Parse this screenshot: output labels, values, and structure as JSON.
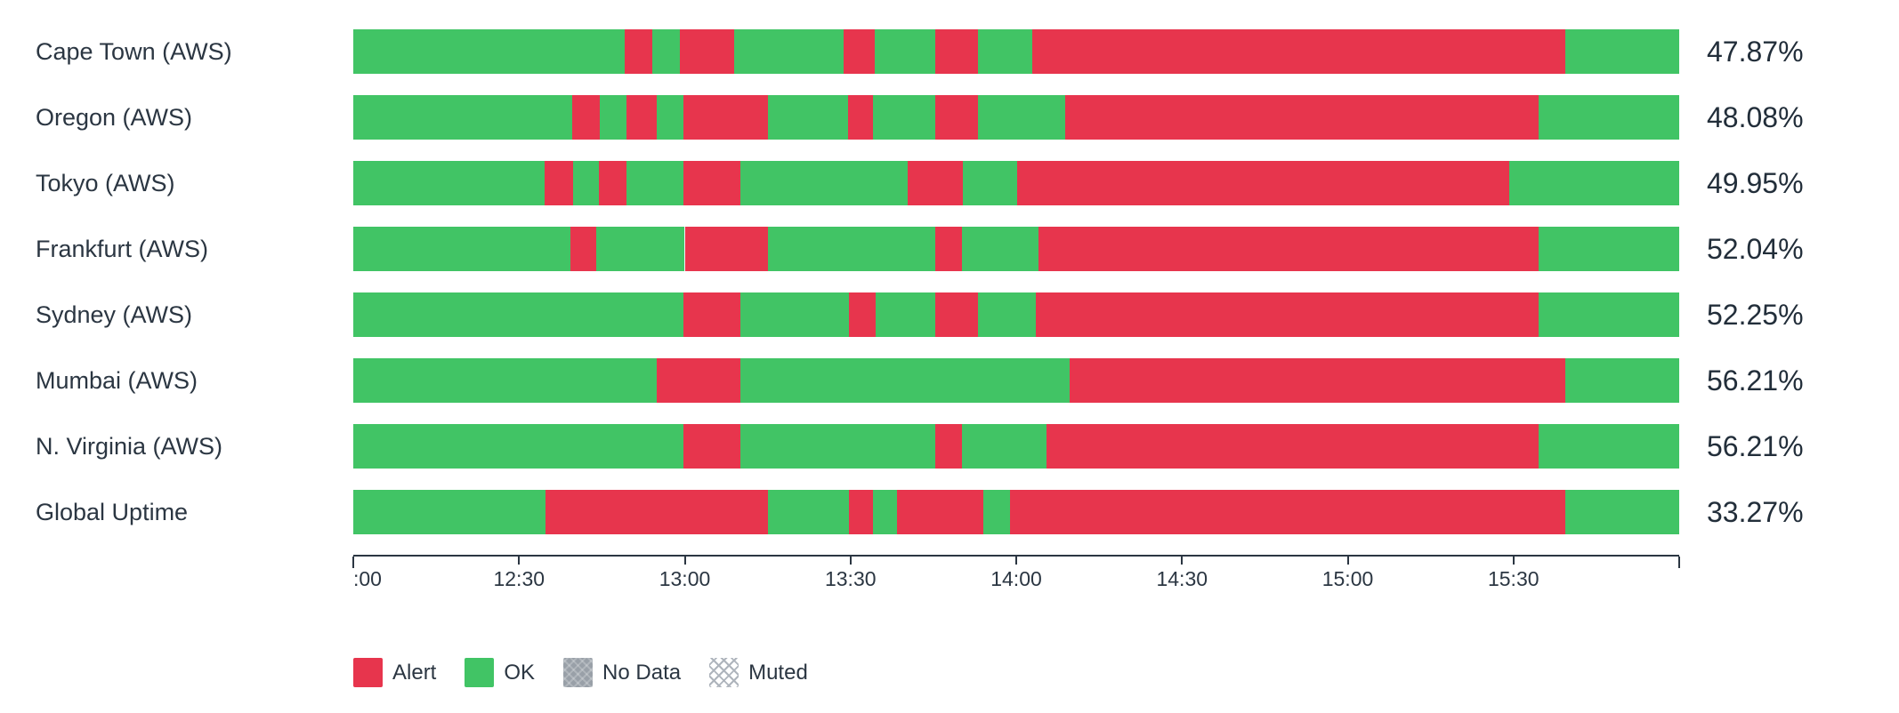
{
  "chart_data": {
    "type": "bar",
    "subtype": "uptime-status-timeline",
    "orientation": "horizontal",
    "grid": false,
    "legend_position": "bottom-left",
    "x_axis": {
      "start": "12:00",
      "end": "16:00",
      "tick_labels": [
        ":00",
        "12:30",
        "13:00",
        "13:30",
        "14:00",
        "14:30",
        "15:00",
        "15:30"
      ],
      "tick_positions": [
        0,
        0.125,
        0.25,
        0.375,
        0.5,
        0.625,
        0.75,
        0.875
      ]
    },
    "status_colors": {
      "ok": "#41c465",
      "alert": "#e7354d",
      "no_data": "#99a0a8"
    },
    "rows": [
      {
        "label": "Cape Town (AWS)",
        "value": "47.87%",
        "segments": [
          [
            "ok",
            0,
            0.2045
          ],
          [
            "alert",
            0.2045,
            0.2253
          ],
          [
            "ok",
            0.2253,
            0.2463
          ],
          [
            "alert",
            0.2463,
            0.2872
          ],
          [
            "ok",
            0.2872,
            0.37
          ],
          [
            "alert",
            0.37,
            0.3935
          ],
          [
            "ok",
            0.3935,
            0.439
          ],
          [
            "alert",
            0.439,
            0.471
          ],
          [
            "ok",
            0.471,
            0.512
          ],
          [
            "alert",
            0.512,
            0.914
          ],
          [
            "ok",
            0.914,
            1
          ]
        ]
      },
      {
        "label": "Oregon (AWS)",
        "value": "48.08%",
        "segments": [
          [
            "ok",
            0,
            0.165
          ],
          [
            "alert",
            0.165,
            0.186
          ],
          [
            "ok",
            0.186,
            0.206
          ],
          [
            "alert",
            0.206,
            0.229
          ],
          [
            "ok",
            0.229,
            0.249
          ],
          [
            "alert",
            0.249,
            0.313
          ],
          [
            "ok",
            0.313,
            0.373
          ],
          [
            "alert",
            0.373,
            0.392
          ],
          [
            "ok",
            0.392,
            0.439
          ],
          [
            "alert",
            0.439,
            0.471
          ],
          [
            "ok",
            0.471,
            0.537
          ],
          [
            "alert",
            0.537,
            0.894
          ],
          [
            "ok",
            0.894,
            1
          ]
        ]
      },
      {
        "label": "Tokyo (AWS)",
        "value": "49.95%",
        "segments": [
          [
            "ok",
            0,
            0.144
          ],
          [
            "alert",
            0.144,
            0.166
          ],
          [
            "ok",
            0.166,
            0.185
          ],
          [
            "alert",
            0.185,
            0.206
          ],
          [
            "ok",
            0.206,
            0.249
          ],
          [
            "alert",
            0.249,
            0.292
          ],
          [
            "ok",
            0.292,
            0.418
          ],
          [
            "alert",
            0.418,
            0.46
          ],
          [
            "ok",
            0.46,
            0.501
          ],
          [
            "alert",
            0.501,
            0.872
          ],
          [
            "ok",
            0.872,
            1
          ]
        ]
      },
      {
        "label": "Frankfurt (AWS)",
        "value": "52.04%",
        "segments": [
          [
            "ok",
            0,
            0.164
          ],
          [
            "alert",
            0.164,
            0.183
          ],
          [
            "ok",
            0.183,
            0.25
          ],
          [
            "alert",
            0.25,
            0.313
          ],
          [
            "ok",
            0.313,
            0.439
          ],
          [
            "alert",
            0.439,
            0.459
          ],
          [
            "ok",
            0.459,
            0.517
          ],
          [
            "alert",
            0.517,
            0.894
          ],
          [
            "ok",
            0.894,
            1
          ]
        ]
      },
      {
        "label": "Sydney (AWS)",
        "value": "52.25%",
        "segments": [
          [
            "ok",
            0,
            0.249
          ],
          [
            "alert",
            0.249,
            0.292
          ],
          [
            "ok",
            0.292,
            0.374
          ],
          [
            "alert",
            0.374,
            0.394
          ],
          [
            "ok",
            0.394,
            0.439
          ],
          [
            "alert",
            0.439,
            0.471
          ],
          [
            "ok",
            0.471,
            0.515
          ],
          [
            "alert",
            0.515,
            0.894
          ],
          [
            "ok",
            0.894,
            1
          ]
        ]
      },
      {
        "label": "Mumbai (AWS)",
        "value": "56.21%",
        "segments": [
          [
            "ok",
            0,
            0.229
          ],
          [
            "alert",
            0.229,
            0.292
          ],
          [
            "ok",
            0.292,
            0.54
          ],
          [
            "alert",
            0.54,
            0.914
          ],
          [
            "ok",
            0.914,
            1
          ]
        ]
      },
      {
        "label": "N. Virginia (AWS)",
        "value": "56.21%",
        "segments": [
          [
            "ok",
            0,
            0.249
          ],
          [
            "alert",
            0.249,
            0.292
          ],
          [
            "ok",
            0.292,
            0.439
          ],
          [
            "alert",
            0.439,
            0.459
          ],
          [
            "ok",
            0.459,
            0.523
          ],
          [
            "alert",
            0.523,
            0.894
          ],
          [
            "ok",
            0.894,
            1
          ]
        ]
      },
      {
        "label": "Global Uptime",
        "value": "33.27%",
        "segments": [
          [
            "ok",
            0,
            0.145
          ],
          [
            "alert",
            0.145,
            0.313
          ],
          [
            "ok",
            0.313,
            0.374
          ],
          [
            "alert",
            0.374,
            0.392
          ],
          [
            "ok",
            0.392,
            0.41
          ],
          [
            "alert",
            0.41,
            0.475
          ],
          [
            "ok",
            0.475,
            0.495
          ],
          [
            "alert",
            0.495,
            0.914
          ],
          [
            "ok",
            0.914,
            1
          ]
        ]
      }
    ],
    "legend": [
      {
        "label": "Alert",
        "swatch": "solid",
        "color": "#e7354d"
      },
      {
        "label": "OK",
        "swatch": "solid",
        "color": "#41c465"
      },
      {
        "label": "No Data",
        "swatch": "hatched-gray",
        "color": "#99a0a8"
      },
      {
        "label": "Muted",
        "swatch": "crosshatch",
        "color": "#aeb4bc"
      }
    ]
  }
}
